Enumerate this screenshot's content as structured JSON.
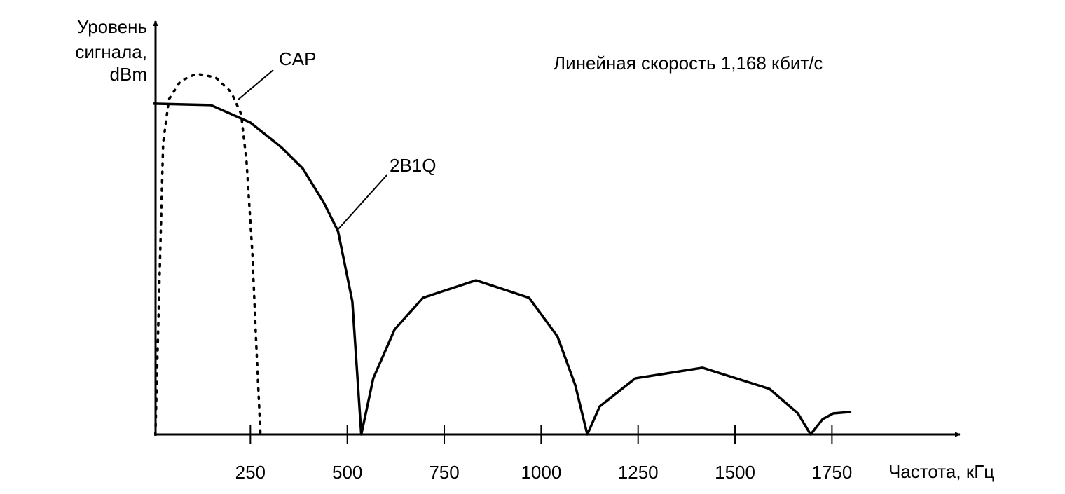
{
  "chart_data": {
    "type": "line",
    "title": "Линейная скорость 1,168 кбит/с",
    "y_label": [
      "Уровень",
      "сигнала,",
      "dBm"
    ],
    "x_label": "Частота, кГц",
    "xlim": [
      0,
      2080
    ],
    "xticks": [
      250,
      500,
      750,
      1000,
      1250,
      1500,
      1750
    ],
    "ylim": [
      0,
      100
    ],
    "series": [
      {
        "name": "2B1Q",
        "color": "#000000",
        "dash": false,
        "x": [
          0,
          148,
          250,
          330,
          385,
          440,
          476,
          513,
          536,
          567,
          622,
          695,
          832,
          969,
          1042,
          1088,
          1119,
          1151,
          1243,
          1416,
          1589,
          1662,
          1695,
          1726,
          1754,
          1800
        ],
        "values": [
          90.8,
          90.4,
          85.6,
          78.8,
          73,
          63.5,
          55.8,
          36.5,
          0,
          15.4,
          28.8,
          37.5,
          42.3,
          37.5,
          26.9,
          13.5,
          0,
          7.7,
          15.4,
          18.3,
          12.5,
          5.8,
          0,
          4.2,
          5.8,
          6.2
        ]
      },
      {
        "name": "CAP",
        "color": "#000000",
        "dash": true,
        "x": [
          5,
          15,
          25,
          40,
          70,
          111,
          160,
          200,
          226,
          240,
          255,
          265,
          276
        ],
        "values": [
          0,
          40,
          80,
          92,
          97,
          99,
          98,
          94,
          88,
          75,
          50,
          25,
          0
        ]
      }
    ]
  }
}
